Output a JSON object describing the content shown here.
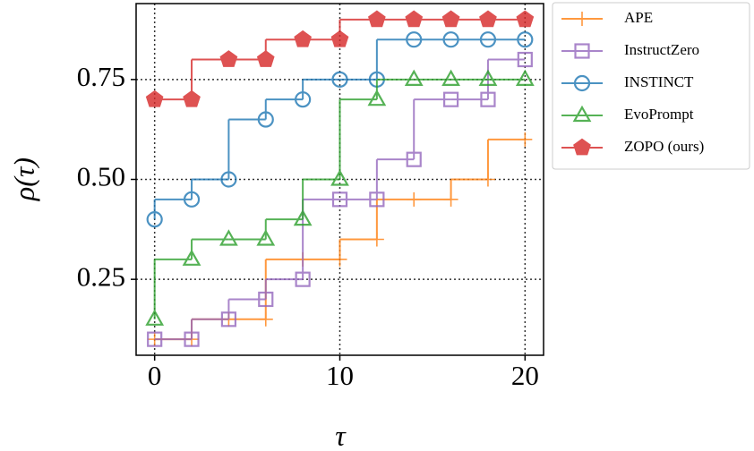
{
  "chart_data": {
    "type": "step",
    "x_label": "τ",
    "y_label": "ρ(τ)",
    "x": [
      0,
      2,
      4,
      6,
      8,
      10,
      12,
      14,
      16,
      18,
      20
    ],
    "xlim": [
      -1,
      21
    ],
    "ylim": [
      0.06,
      0.94
    ],
    "xticks": [
      0,
      10,
      20
    ],
    "yticks": [
      0.25,
      {
        "value": 0.5,
        "label": "0.50"
      },
      0.75
    ],
    "grid": true,
    "legend": "outside upper right",
    "series": [
      {
        "name": "APE",
        "color": "#ff7f0e",
        "marker": "plus",
        "values": [
          0.1,
          0.1,
          0.15,
          0.15,
          0.3,
          0.3,
          0.35,
          0.45,
          0.45,
          0.5,
          0.6
        ]
      },
      {
        "name": "InstructZero",
        "color": "#9467bd",
        "marker": "square",
        "values": [
          0.1,
          0.1,
          0.15,
          0.2,
          0.25,
          0.45,
          0.45,
          0.55,
          0.7,
          0.7,
          0.8
        ]
      },
      {
        "name": "INSTINCT",
        "color": "#1f77b4",
        "marker": "circle",
        "values": [
          0.4,
          0.45,
          0.5,
          0.65,
          0.7,
          0.75,
          0.75,
          0.85,
          0.85,
          0.85,
          0.85
        ]
      },
      {
        "name": "EvoPrompt",
        "color": "#2ca02c",
        "marker": "triangle",
        "values": [
          0.15,
          0.3,
          0.35,
          0.35,
          0.4,
          0.5,
          0.7,
          0.75,
          0.75,
          0.75,
          0.75
        ]
      },
      {
        "name": "ZOPO (ours)",
        "color": "#d62728",
        "marker": "pentagon",
        "values": [
          0.7,
          0.7,
          0.8,
          0.8,
          0.85,
          0.85,
          0.9,
          0.9,
          0.9,
          0.9,
          0.9
        ]
      }
    ]
  }
}
